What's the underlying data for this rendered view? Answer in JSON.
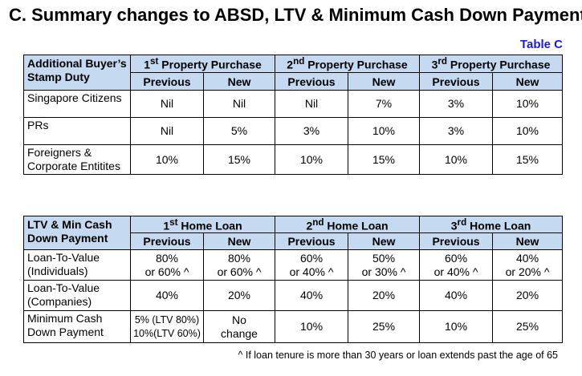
{
  "title": "C. Summary changes to ABSD, LTV & Minimum Cash Down Payment",
  "table_label": "Table C",
  "absd": {
    "corner_line1": "Additional Buyer’s",
    "corner_line2": "Stamp Duty",
    "groups": [
      {
        "num": "1",
        "sup": "st",
        "label": " Property Purchase"
      },
      {
        "num": "2",
        "sup": "nd",
        "label": " Property Purchase"
      },
      {
        "num": "3",
        "sup": "rd",
        "label": " Property Purchase"
      }
    ],
    "subheaders": [
      "Previous",
      "New",
      "Previous",
      "New",
      "Previous",
      "New"
    ],
    "rows": [
      {
        "label": "Singapore Citizens",
        "values": [
          "Nil",
          "Nil",
          "Nil",
          "7%",
          "3%",
          "10%"
        ]
      },
      {
        "label": "PRs",
        "values": [
          "Nil",
          "5%",
          "3%",
          "10%",
          "3%",
          "10%"
        ]
      },
      {
        "label_line1": "Foreigners &",
        "label_line2": "Corporate Entitites",
        "values": [
          "10%",
          "15%",
          "10%",
          "15%",
          "10%",
          "15%"
        ]
      }
    ]
  },
  "ltv": {
    "corner_line1": "LTV & Min Cash",
    "corner_line2": "Down Payment",
    "groups": [
      {
        "num": "1",
        "sup": "st",
        "label": " Home Loan"
      },
      {
        "num": "2",
        "sup": "nd",
        "label": " Home Loan"
      },
      {
        "num": "3",
        "sup": "rd",
        "label": " Home Loan"
      }
    ],
    "subheaders": [
      "Previous",
      "New",
      "Previous",
      "New",
      "Previous",
      "New"
    ],
    "rows": [
      {
        "label_line1": "Loan-To-Value",
        "label_line2": "(Individuals)",
        "values": [
          [
            "80%",
            "or 60% ^"
          ],
          [
            "80%",
            "or 60% ^"
          ],
          [
            "60%",
            "or 40% ^"
          ],
          [
            "50%",
            "or 30% ^"
          ],
          [
            "60%",
            "or 40% ^"
          ],
          [
            "40%",
            "or 20% ^"
          ]
        ]
      },
      {
        "label_line1": "Loan-To-Value",
        "label_line2": "(Companies)",
        "values": [
          "40%",
          "20%",
          "40%",
          "20%",
          "40%",
          "20%"
        ]
      },
      {
        "label_line1": "Minimum Cash",
        "label_line2": "Down Payment",
        "values": [
          [
            "5% (LTV 80%)",
            "10%(LTV 60%)"
          ],
          [
            "No",
            "change"
          ],
          "10%",
          "25%",
          "10%",
          "25%"
        ]
      }
    ]
  },
  "footnote": "^ If loan tenure is more than 30 years or loan extends past the age of 65"
}
